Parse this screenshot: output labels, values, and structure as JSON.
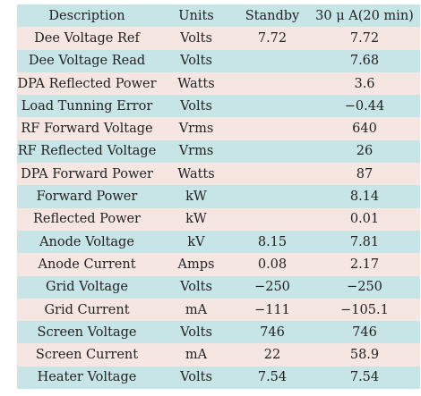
{
  "headers": {
    "description": "Description",
    "units": "Units",
    "standby": "Standby",
    "run": "30 μ A(20 min)"
  },
  "rows": [
    {
      "description": "Dee Voltage Ref",
      "units": "Volts",
      "standby": "7.72",
      "run": "7.72"
    },
    {
      "description": "Dee Voltage Read",
      "units": "Volts",
      "standby": "",
      "run": "7.68"
    },
    {
      "description": "DPA Reflected Power",
      "units": "Watts",
      "standby": "",
      "run": "3.6"
    },
    {
      "description": "Load Tunning Error",
      "units": "Volts",
      "standby": "",
      "run": "−0.44"
    },
    {
      "description": "RF Forward Voltage",
      "units": "Vrms",
      "standby": "",
      "run": "640"
    },
    {
      "description": "RF Reflected Voltage",
      "units": "Vrms",
      "standby": "",
      "run": "26"
    },
    {
      "description": "DPA Forward Power",
      "units": "Watts",
      "standby": "",
      "run": "87"
    },
    {
      "description": "Forward Power",
      "units": "kW",
      "standby": "",
      "run": "8.14"
    },
    {
      "description": "Reflected Power",
      "units": "kW",
      "standby": "",
      "run": "0.01"
    },
    {
      "description": "Anode Voltage",
      "units": "kV",
      "standby": "8.15",
      "run": "7.81"
    },
    {
      "description": "Anode Current",
      "units": "Amps",
      "standby": "0.08",
      "run": "2.17"
    },
    {
      "description": "Grid Voltage",
      "units": "Volts",
      "standby": "−250",
      "run": "−250"
    },
    {
      "description": "Grid Current",
      "units": "mA",
      "standby": "−111",
      "run": "−105.1"
    },
    {
      "description": "Screen Voltage",
      "units": "Volts",
      "standby": "746",
      "run": "746"
    },
    {
      "description": "Screen Current",
      "units": "mA",
      "standby": "22",
      "run": "58.9"
    },
    {
      "description": "Heater Voltage",
      "units": "Volts",
      "standby": "7.54",
      "run": "7.54"
    }
  ],
  "colors": {
    "header_and_even_rows": "#c7e4e7",
    "odd_rows": "#f5e6e1"
  }
}
